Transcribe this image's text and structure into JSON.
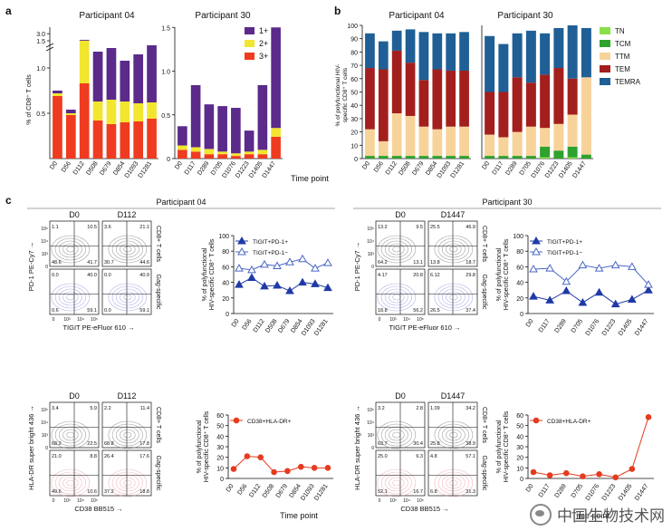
{
  "panel_letters": {
    "a": "a",
    "b": "b",
    "c": "c"
  },
  "participants": {
    "p04": "Participant 04",
    "p30": "Participant 30"
  },
  "xlabel_timepoint": "Time point",
  "colors": {
    "sev1": "#5b2a8a",
    "sev2": "#f2e62f",
    "sev3": "#ef3b1f",
    "tn": "#88e04a",
    "tcm": "#2ea22d",
    "ttm": "#f7d39a",
    "tem": "#a31f1d",
    "temra": "#1f5f95",
    "dark_tri": "#1f3aa6",
    "light_tri": "#4b67c6",
    "red_dot": "#e53b1f"
  },
  "chart_data": [
    {
      "id": "a-p04",
      "type": "bar",
      "stacked": true,
      "title": "Participant 04",
      "ylabel": "% of CD8+ T cells",
      "yticks": [
        "0.5",
        "1.0",
        "1.5",
        "3.0"
      ],
      "categories": [
        "D0",
        "D56",
        "D112",
        "D508",
        "D679",
        "D854",
        "D1093",
        "D1281"
      ],
      "series": [
        {
          "name": "3+",
          "values": [
            0.69,
            0.48,
            0.83,
            0.42,
            0.38,
            0.4,
            0.41,
            0.44
          ]
        },
        {
          "name": "2+",
          "values": [
            0.03,
            0.02,
            0.5,
            0.21,
            0.27,
            0.23,
            0.2,
            0.18
          ]
        },
        {
          "name": "1+",
          "values": [
            0.03,
            0.04,
            0.2,
            0.55,
            0.57,
            0.45,
            0.54,
            0.63
          ]
        }
      ]
    },
    {
      "id": "a-p30",
      "type": "bar",
      "stacked": true,
      "title": "Participant 30",
      "yticks": [
        "0",
        "0.5",
        "1.0",
        "1.5"
      ],
      "ylim": [
        0,
        1.5
      ],
      "legend": [
        "1+",
        "2+",
        "3+"
      ],
      "categories": [
        "D0",
        "D117",
        "D289",
        "D705",
        "D1076",
        "D1223",
        "D1405",
        "D1447"
      ],
      "series": [
        {
          "name": "3+",
          "values": [
            0.1,
            0.08,
            0.05,
            0.05,
            0.03,
            0.05,
            0.05,
            0.25
          ]
        },
        {
          "name": "2+",
          "values": [
            0.05,
            0.05,
            0.06,
            0.03,
            0.03,
            0.03,
            0.05,
            0.1
          ]
        },
        {
          "name": "1+",
          "values": [
            0.22,
            0.71,
            0.51,
            0.52,
            0.52,
            0.24,
            0.74,
            1.15
          ]
        }
      ]
    },
    {
      "id": "b-p04",
      "type": "bar",
      "stacked": true,
      "title": "Participant 04",
      "ylabel": "% of polyfunctional HIV-specific CD8+ T cells",
      "yticks": [
        "0",
        "10",
        "20",
        "30",
        "40",
        "50",
        "60",
        "70",
        "80",
        "90",
        "100"
      ],
      "ylim": [
        0,
        100
      ],
      "categories": [
        "D0",
        "D56",
        "D112",
        "D508",
        "D679",
        "D854",
        "D1093",
        "D1281"
      ],
      "series": [
        {
          "name": "TN",
          "values": [
            0,
            0,
            0,
            0,
            0,
            0,
            0,
            0
          ]
        },
        {
          "name": "TCM",
          "values": [
            2,
            2,
            2,
            2,
            2,
            2,
            2,
            2
          ]
        },
        {
          "name": "TTM",
          "values": [
            20,
            11,
            32,
            30,
            22,
            20,
            22,
            22
          ]
        },
        {
          "name": "TEM",
          "values": [
            46,
            54,
            47,
            40,
            35,
            45,
            42,
            42
          ]
        },
        {
          "name": "TEMRA",
          "values": [
            26,
            21,
            15,
            25,
            36,
            27,
            28,
            29
          ]
        }
      ]
    },
    {
      "id": "b-p30",
      "type": "bar",
      "stacked": true,
      "title": "Participant 30",
      "yticks": [
        "0",
        "10",
        "20",
        "30",
        "40",
        "50",
        "60",
        "70",
        "80",
        "90",
        "100"
      ],
      "ylim": [
        0,
        100
      ],
      "legend": [
        "TN",
        "TCM",
        "TTM",
        "TEM",
        "TEMRA"
      ],
      "categories": [
        "D0",
        "D117",
        "D289",
        "D705",
        "D1076",
        "D1223",
        "D1405",
        "D1447"
      ],
      "series": [
        {
          "name": "TN",
          "values": [
            0,
            0,
            0,
            0,
            1,
            0,
            1,
            0
          ]
        },
        {
          "name": "TCM",
          "values": [
            2,
            2,
            2,
            2,
            8,
            6,
            8,
            3
          ]
        },
        {
          "name": "TTM",
          "values": [
            16,
            14,
            18,
            22,
            14,
            20,
            24,
            58
          ]
        },
        {
          "name": "TEM",
          "values": [
            32,
            34,
            41,
            33,
            40,
            42,
            27,
            0
          ]
        },
        {
          "name": "TEMRA",
          "values": [
            42,
            36,
            33,
            39,
            31,
            30,
            40,
            37
          ]
        }
      ]
    },
    {
      "id": "c-p04-tigit",
      "type": "line",
      "ylabel": "% of polyfunctional HIV-specific CD8+ T cells",
      "yticks": [
        "0",
        "20",
        "40",
        "60",
        "80",
        "100"
      ],
      "ylim": [
        0,
        100
      ],
      "categories": [
        "D0",
        "D56",
        "D112",
        "D508",
        "D679",
        "D854",
        "D1093",
        "D1281"
      ],
      "series": [
        {
          "name": "TIGIT+PD-1+",
          "values": [
            37,
            46,
            35,
            36,
            29,
            40,
            38,
            33
          ]
        },
        {
          "name": "TIGIT+PD-1−",
          "values": [
            58,
            56,
            63,
            61,
            66,
            70,
            58,
            65
          ]
        }
      ]
    },
    {
      "id": "c-p30-tigit",
      "type": "line",
      "ylabel": "% of polyfunctional HIV-specific CD8+ T cells",
      "yticks": [
        "0",
        "20",
        "40",
        "60",
        "80",
        "100"
      ],
      "ylim": [
        0,
        100
      ],
      "categories": [
        "D0",
        "D117",
        "D289",
        "D705",
        "D1076",
        "D1223",
        "D1405",
        "D1447"
      ],
      "series": [
        {
          "name": "TIGIT+PD-1+",
          "values": [
            22,
            17,
            29,
            14,
            27,
            12,
            18,
            30
          ]
        },
        {
          "name": "TIGIT+PD-1−",
          "values": [
            57,
            58,
            41,
            62,
            58,
            62,
            60,
            37
          ]
        }
      ]
    },
    {
      "id": "c-p04-cd38",
      "type": "line",
      "ylabel": "% of polyfunctional HIV-specific CD8+ T cells",
      "yticks": [
        "0",
        "10",
        "20",
        "30",
        "40",
        "50",
        "60"
      ],
      "ylim": [
        0,
        60
      ],
      "categories": [
        "D0",
        "D56",
        "D112",
        "D508",
        "D679",
        "D854",
        "D1093",
        "D1281"
      ],
      "series": [
        {
          "name": "CD38+HLA-DR+",
          "values": [
            9,
            21,
            20,
            6,
            7,
            11,
            10,
            10
          ]
        }
      ]
    },
    {
      "id": "c-p30-cd38",
      "type": "line",
      "ylabel": "% of polyfunctional HIV-specific CD8+ T cells",
      "yticks": [
        "0",
        "10",
        "20",
        "30",
        "40",
        "50",
        "60"
      ],
      "ylim": [
        0,
        60
      ],
      "categories": [
        "D0",
        "D117",
        "D289",
        "D705",
        "D1076",
        "D1223",
        "D1405",
        "D1447"
      ],
      "series": [
        {
          "name": "CD38+HLA-DR+",
          "values": [
            6,
            3,
            5,
            2,
            4,
            1,
            9,
            58
          ]
        }
      ]
    }
  ],
  "flow": {
    "p04_top": {
      "headers": [
        "D0",
        "D112"
      ],
      "row_labels": [
        "CD8+ T cells",
        "Gag-specific"
      ],
      "xaxis": "TIGIT PE-eFluor 610",
      "yaxis": "PD-1 PE-Cy7",
      "ticks": [
        "0",
        "10³",
        "10⁴",
        "10⁵"
      ],
      "quads": [
        [
          "1.1",
          "10.5",
          "48.6",
          "41.7"
        ],
        [
          "3.6",
          "21.1",
          "30.7",
          "44.6"
        ],
        [
          "0.0",
          "40.0",
          "0.6",
          "59.1"
        ],
        [
          "0.0",
          "40.9",
          "0.0",
          "59.1"
        ]
      ]
    },
    "p04_bot": {
      "headers": [
        "D0",
        "D112"
      ],
      "row_labels": [
        "CD8+ T cells",
        "Gag-specific"
      ],
      "xaxis": "CD38 BB515",
      "yaxis": "HLA-DR super bright 436",
      "quads": [
        [
          "3.4",
          "5.9",
          "68.2",
          "22.5"
        ],
        [
          "2.2",
          "11.4",
          "68.8",
          "17.8"
        ],
        [
          "21.0",
          "8.8",
          "49.6",
          "10.6"
        ],
        [
          "26.4",
          "17.6",
          "37.2",
          "18.8"
        ]
      ]
    },
    "p30_top": {
      "headers": [
        "D0",
        "D1447"
      ],
      "row_labels": [
        "CD8+ T cells",
        "Gag-specific"
      ],
      "xaxis": "TIGIT PE-eFluor 610",
      "yaxis": "PD-1 PE-Cy7",
      "quads": [
        [
          "13.2",
          "9.5",
          "64.2",
          "13.1"
        ],
        [
          "25.5",
          "46.9",
          "13.8",
          "18.7"
        ],
        [
          "4.17",
          "20.8",
          "18.8",
          "56.2"
        ],
        [
          "6.12",
          "29.8",
          "26.5",
          "37.4"
        ]
      ]
    },
    "p30_bot": {
      "headers": [
        "D0",
        "D1447"
      ],
      "row_labels": [
        "CD8+ T cells",
        "Gag-specific"
      ],
      "xaxis": "CD38 BB515",
      "yaxis": "HLA-DR super bright 436",
      "quads": [
        [
          "3.2",
          "2.8",
          "63.7",
          "30.4"
        ],
        [
          "1.09",
          "34.2",
          "25.8",
          "38.9"
        ],
        [
          "25.0",
          "6.3",
          "52.1",
          "16.7"
        ],
        [
          "4.8",
          "57.1",
          "6.8",
          "31.3"
        ]
      ]
    }
  },
  "legend_text": {
    "tigit_pd1_pos": "TIGIT+PD-1+",
    "tigit_pd1_neg": "TIGIT+PD-1−",
    "cd38": "CD38+HLA-DR+"
  },
  "watermark": "中国生物技术网"
}
